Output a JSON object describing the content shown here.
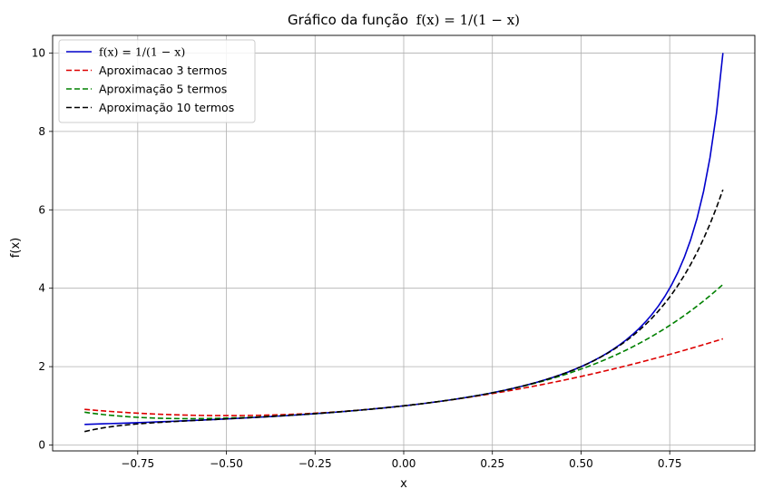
{
  "chart_data": {
    "type": "line",
    "title_prefix": "Gráfico da função",
    "title_math": "f(x) = 1/(1 − x)",
    "xlabel": "x",
    "ylabel": "f(x)",
    "xlim": [
      -0.99,
      0.99
    ],
    "ylim": [
      -0.15,
      10.45
    ],
    "grid": true,
    "legend_position": "upper-left",
    "xticks": [
      -0.75,
      -0.5,
      -0.25,
      0.0,
      0.25,
      0.5,
      0.75
    ],
    "xtick_labels": [
      "−0.75",
      "−0.50",
      "−0.25",
      "0.00",
      "0.25",
      "0.50",
      "0.75"
    ],
    "yticks": [
      0,
      2,
      4,
      6,
      8,
      10
    ],
    "ytick_labels": [
      "0",
      "2",
      "4",
      "6",
      "8",
      "10"
    ],
    "x_range": [
      -0.9,
      0.9
    ],
    "series": [
      {
        "name": "f(x) = 1/(1 − x)",
        "terms": 0,
        "color": "#0000cc",
        "style": "solid"
      },
      {
        "name": "Aproximacao 3 termos",
        "terms": 3,
        "color": "#dd0000",
        "style": "dashed"
      },
      {
        "name": "Aproximação 5 termos",
        "terms": 5,
        "color": "#008000",
        "style": "dashed"
      },
      {
        "name": "Aproximação 10 termos",
        "terms": 10,
        "color": "#000000",
        "style": "dashed"
      }
    ]
  }
}
